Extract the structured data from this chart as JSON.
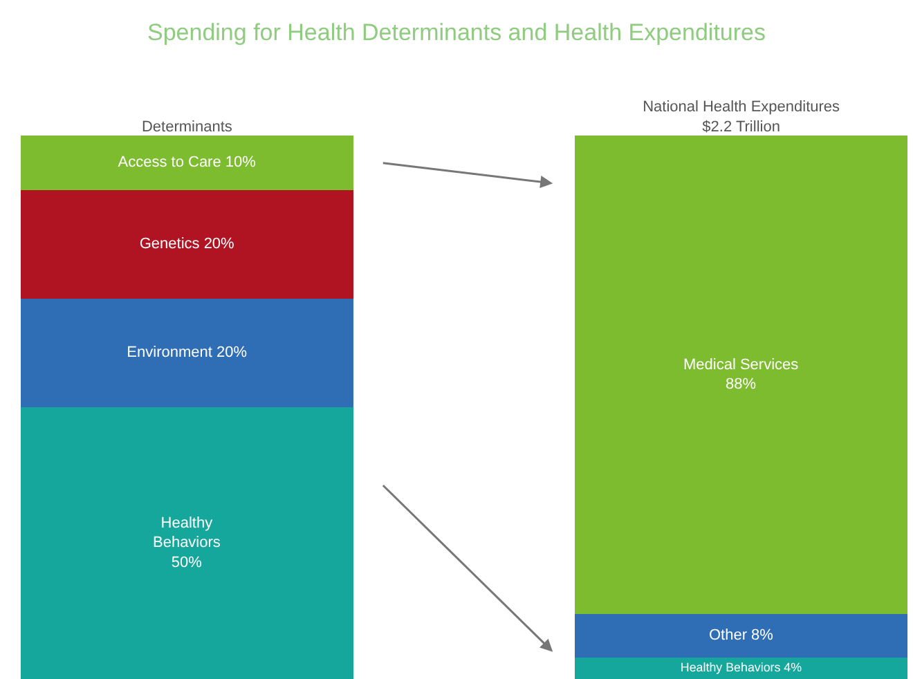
{
  "chart_data": {
    "type": "bar",
    "stacked": true,
    "title": "Spending for Health Determinants and Health Expenditures",
    "categories": [
      "Determinants",
      "National Health Expenditures\n$2.2 Trillion"
    ],
    "ylim": [
      0,
      100
    ],
    "tick_labels": "x",
    "legend": false,
    "series": [
      {
        "color": "#16a79c",
        "values": [
          50,
          null
        ],
        "value_labels": [
          "Healthy\nBehaviors\n50%",
          null
        ]
      },
      {
        "color": "#2f6eb5",
        "values": [
          20,
          null
        ],
        "value_labels": [
          "Environment 20%",
          null
        ]
      },
      {
        "color": "#b01423",
        "values": [
          20,
          null
        ],
        "value_labels": [
          "Genetics 20%",
          null
        ]
      },
      {
        "color": "#7dbb2f",
        "values": [
          10,
          null
        ],
        "value_labels": [
          "Access to Care 10%",
          null
        ]
      },
      {
        "color": "#16a79c",
        "values": [
          null,
          4
        ],
        "value_labels": [
          null,
          "Healthy Behaviors 4%"
        ]
      },
      {
        "color": "#2f6eb5",
        "values": [
          null,
          8
        ],
        "value_labels": [
          null,
          "Other 8%"
        ]
      },
      {
        "color": "#7dbb2f",
        "values": [
          null,
          88
        ],
        "value_labels": [
          null,
          "Medical Services\n88%"
        ]
      }
    ]
  }
}
